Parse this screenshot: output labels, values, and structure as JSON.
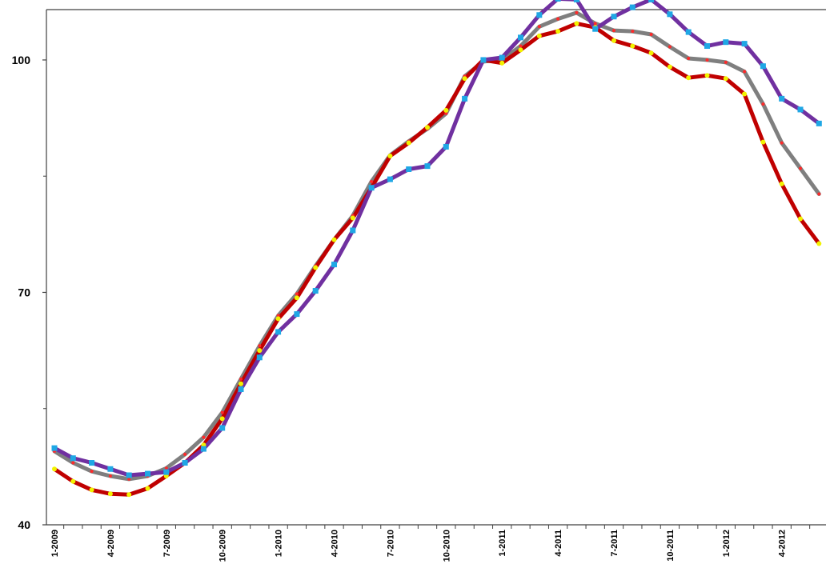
{
  "chart_data": {
    "type": "line",
    "title": "",
    "xlabel": "",
    "ylabel": "",
    "ylim": [
      40,
      106.5
    ],
    "grid": false,
    "legend": "none",
    "y_ticks": [
      40,
      70,
      100
    ],
    "y_tick_labels": [
      "40",
      "70",
      "100"
    ],
    "y_minor_ticks": [
      55,
      85
    ],
    "x_tick_labels": [
      "1-2009",
      "4-2009",
      "7-2009",
      "10-2009",
      "1-2010",
      "4-2010",
      "7-2010",
      "10-2010",
      "1-2011",
      "4-2011",
      "7-2011",
      "10-2011",
      "1-2012",
      "4-2012"
    ],
    "x": [
      "1-2009",
      "2-2009",
      "3-2009",
      "4-2009",
      "5-2009",
      "6-2009",
      "7-2009",
      "8-2009",
      "9-2009",
      "10-2009",
      "11-2009",
      "12-2009",
      "1-2010",
      "2-2010",
      "3-2010",
      "4-2010",
      "5-2010",
      "6-2010",
      "7-2010",
      "8-2010",
      "9-2010",
      "10-2010",
      "11-2010",
      "12-2010",
      "1-2011",
      "2-2011",
      "3-2011",
      "4-2011",
      "5-2011",
      "6-2011",
      "7-2011",
      "8-2011",
      "9-2011",
      "10-2011",
      "11-2011",
      "12-2011",
      "1-2012",
      "2-2012",
      "3-2012",
      "4-2012",
      "5-2012",
      "6-2012"
    ],
    "series": [
      {
        "color": "#7F7F7F",
        "marker_color": "#FF2A2A",
        "marker": "dot",
        "values": [
          49.5,
          48.0,
          46.9,
          46.3,
          45.9,
          46.3,
          47.3,
          49.1,
          51.3,
          54.5,
          58.8,
          63.1,
          67.0,
          69.8,
          73.4,
          76.8,
          79.9,
          84.3,
          87.7,
          89.5,
          91.1,
          93.1,
          97.9,
          99.8,
          100.0,
          101.8,
          104.3,
          105.3,
          106.1,
          104.7,
          103.8,
          103.7,
          103.3,
          101.7,
          100.2,
          100.0,
          99.7,
          98.5,
          94.3,
          89.3,
          86.0,
          82.7
        ]
      },
      {
        "color": "#C00000",
        "marker_color": "#F2F200",
        "marker": "dot",
        "values": [
          47.2,
          45.6,
          44.5,
          44.0,
          43.9,
          44.7,
          46.3,
          48.0,
          50.3,
          53.7,
          58.2,
          62.5,
          66.6,
          69.3,
          73.2,
          76.8,
          79.6,
          83.5,
          87.6,
          89.3,
          91.3,
          93.5,
          97.6,
          100.0,
          99.6,
          101.3,
          103.1,
          103.7,
          104.7,
          104.2,
          102.5,
          101.8,
          100.9,
          99.1,
          97.7,
          98.0,
          97.6,
          95.6,
          89.4,
          84.0,
          79.5,
          76.3
        ]
      },
      {
        "color": "#7030A0",
        "marker_color": "#1FA7E5",
        "marker": "square",
        "values": [
          49.9,
          48.6,
          48.0,
          47.2,
          46.4,
          46.6,
          46.8,
          48.0,
          49.8,
          52.5,
          57.5,
          61.6,
          64.9,
          67.2,
          70.2,
          73.6,
          78.0,
          83.5,
          84.6,
          85.9,
          86.3,
          88.8,
          95.0,
          100.0,
          100.3,
          102.9,
          105.8,
          107.9,
          107.8,
          104.0,
          105.6,
          106.8,
          107.8,
          105.9,
          103.6,
          101.8,
          102.3,
          102.1,
          99.2,
          95.0,
          93.6,
          91.8
        ]
      }
    ]
  }
}
